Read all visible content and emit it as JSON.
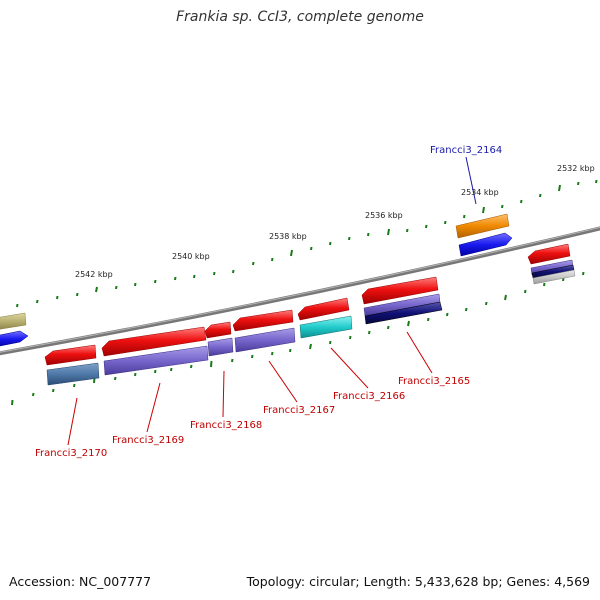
{
  "title": "Frankia sp. CcI3, complete genome",
  "footer": {
    "accession": "Accession: NC_007777",
    "summary": "Topology: circular; Length: 5,433,628 bp; Genes: 4,569"
  },
  "scale_labels": [
    "2532 kbp",
    "2534 kbp",
    "2536 kbp",
    "2538 kbp",
    "2540 kbp",
    "2542 kbp"
  ],
  "gene_labels": [
    {
      "text": "Francci3_2164",
      "highlight": true
    },
    {
      "text": "Francci3_2165",
      "highlight": false
    },
    {
      "text": "Francci3_2166",
      "highlight": false
    },
    {
      "text": "Francci3_2167",
      "highlight": false
    },
    {
      "text": "Francci3_2168",
      "highlight": false
    },
    {
      "text": "Francci3_2169",
      "highlight": false
    },
    {
      "text": "Francci3_2170",
      "highlight": false
    }
  ],
  "colors": {
    "cds": "#ee1111",
    "purple": "#7766cc",
    "steel": "#4f79a8",
    "cyan": "#22cccc",
    "navy": "#111177",
    "orange": "#f08a00",
    "blue": "#1a1af0",
    "olive": "#b8b070",
    "backbone": "#777777",
    "tick": "#1a7a1a",
    "label_red": "#c00000",
    "label_blue": "#1a1aaa"
  }
}
